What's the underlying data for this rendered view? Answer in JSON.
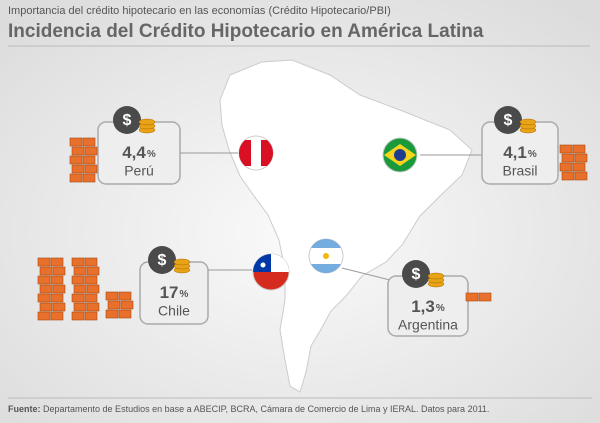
{
  "header": {
    "subtitle": "Importancia del crédito hipotecario en las economías (Crédito Hipotecario/PBI)",
    "title": "Incidencia del Crédito Hipotecario en América Latina"
  },
  "items": [
    {
      "value": "4,4",
      "unit": "%",
      "country": "Perú"
    },
    {
      "value": "4,1",
      "unit": "%",
      "country": "Brasil"
    },
    {
      "value": "17",
      "unit": "%",
      "country": "Chile"
    },
    {
      "value": "1,3",
      "unit": "%",
      "country": "Argentina"
    }
  ],
  "footer": {
    "label": "Fuente:",
    "text": "Departamento de Estudios en base a ABECIP, BCRA, Cámara de Comercio de Lima y IERAL. Datos para 2011."
  }
}
